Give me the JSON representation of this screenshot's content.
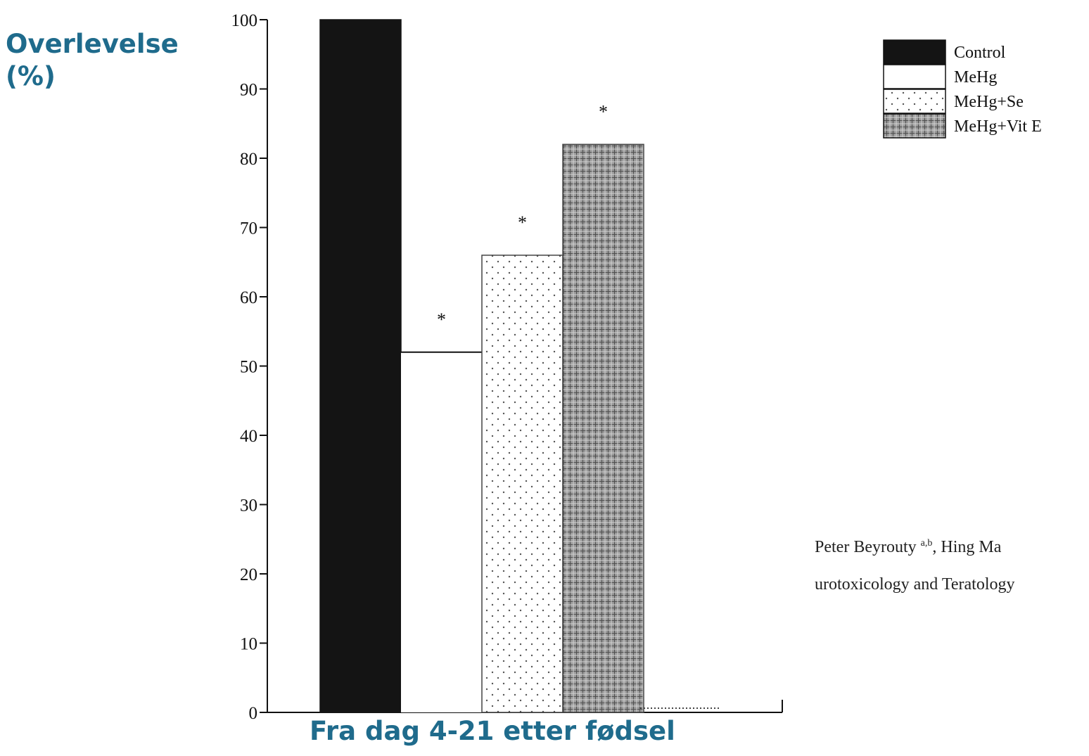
{
  "chart_data": {
    "type": "bar",
    "ylabel": "Overlevelse (%)",
    "ylabel_lines": [
      "Overlevelse",
      "(%)"
    ],
    "xlabel": "Fra dag 4-21 etter fødsel",
    "ylim": [
      0,
      100
    ],
    "yticks": [
      0,
      10,
      20,
      30,
      40,
      50,
      60,
      70,
      80,
      90,
      100
    ],
    "grid": false,
    "legend_position": "top-right",
    "series": [
      {
        "name": "Control",
        "value": 100,
        "significance": "",
        "pattern": "solid-black"
      },
      {
        "name": "MeHg",
        "value": 52,
        "significance": "*",
        "pattern": "white"
      },
      {
        "name": "MeHg+Se",
        "value": 66,
        "significance": "*",
        "pattern": "dotted"
      },
      {
        "name": "MeHg+Vit E",
        "value": 82,
        "significance": "*",
        "pattern": "grey-grid"
      }
    ]
  },
  "citation": {
    "author_prefix": "Peter Beyrouty ",
    "author_sup": "a,b",
    "author_suffix": ", Hing Ma",
    "journal": "urotoxicology and Teratology"
  },
  "colors": {
    "label_blue": "#1f6b8c",
    "control": "#141414",
    "vit_e": "#8f8f8f"
  }
}
